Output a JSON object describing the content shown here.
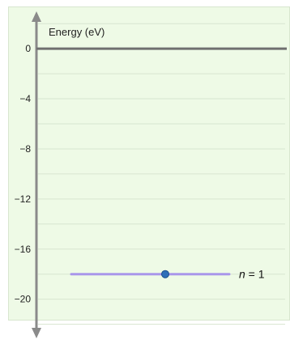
{
  "diagram": {
    "axis_title": "Energy (eV)",
    "y_ticks": [
      {
        "value": 0,
        "label": "0"
      },
      {
        "value": -4,
        "label": "−4"
      },
      {
        "value": -8,
        "label": "−8"
      },
      {
        "value": -12,
        "label": "−12"
      },
      {
        "value": -16,
        "label": "−16"
      },
      {
        "value": -20,
        "label": "−20"
      }
    ],
    "energy_range": [
      -22.8,
      2.4
    ],
    "level": {
      "energy": -18,
      "label": "n = 1",
      "color": "#a996ea"
    },
    "colors": {
      "panel": "#eefae6",
      "grid": "#d7e5d0",
      "axis": "#8a8a8a",
      "zero_line": "#6f6f6f",
      "electron": "#2f6fb8"
    }
  }
}
